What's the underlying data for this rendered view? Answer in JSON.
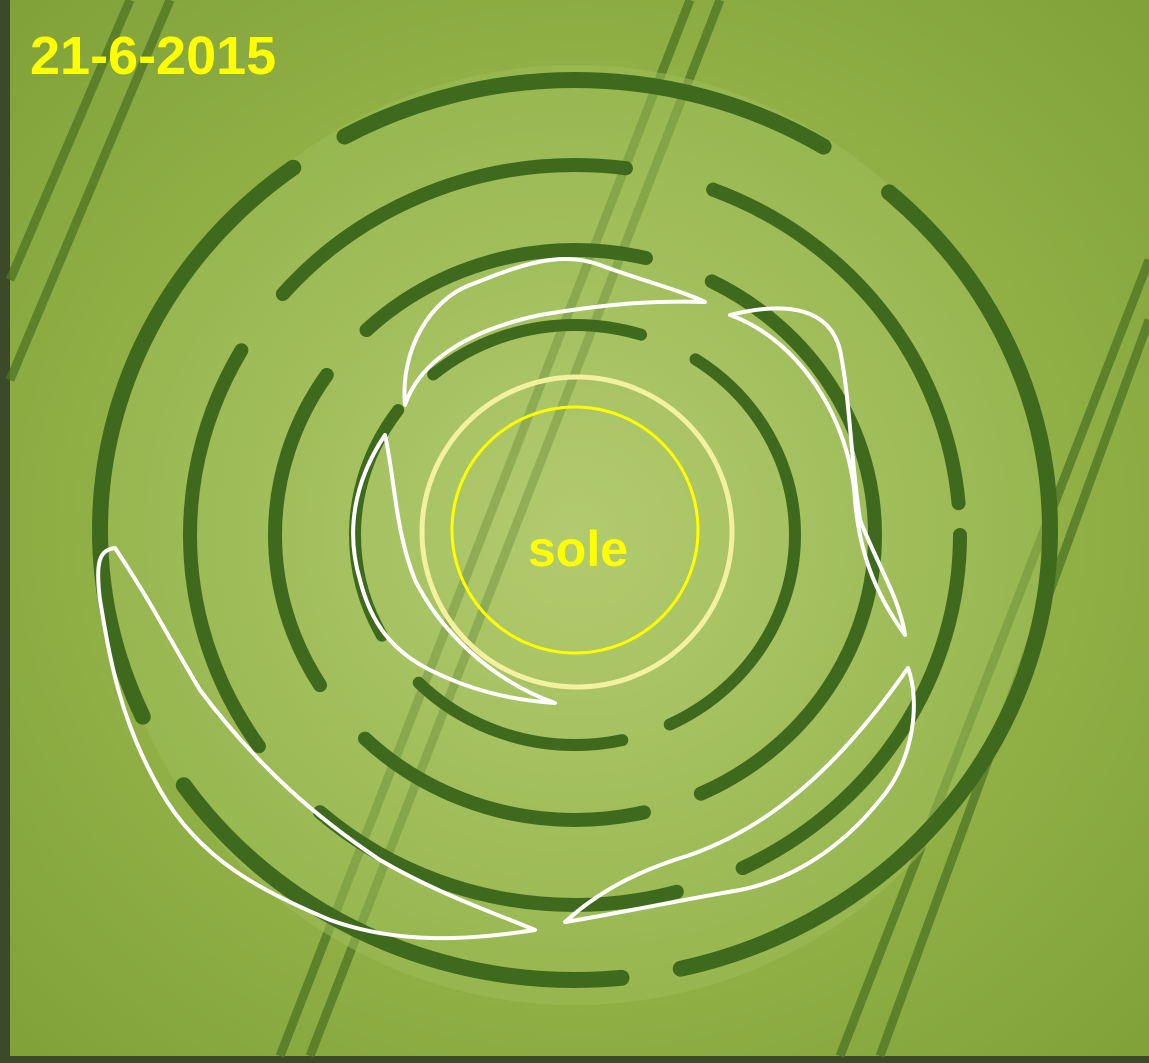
{
  "date_label": "21-6-2015",
  "center_label": "sole"
}
